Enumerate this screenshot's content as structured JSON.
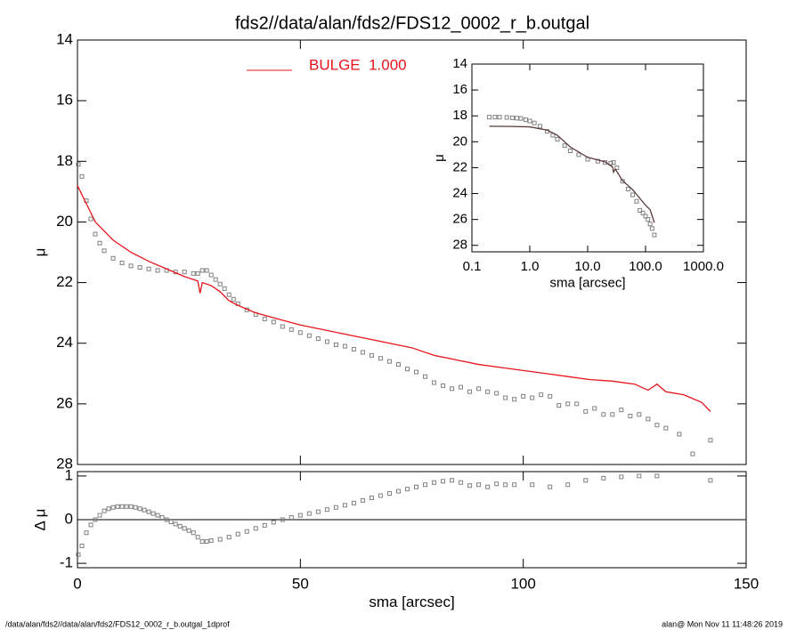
{
  "title": "fds2//data/alan/fds2/FDS12_0002_r_b.outgal",
  "footer": {
    "left": "/data/alan/fds2//data/alan/fds2/FDS12_0002_r_b.outgal_1dprof",
    "right": "alan@  Mon Nov 11 11:48:26 2019"
  },
  "chart_data": [
    {
      "type": "line",
      "ylabel": "μ",
      "xlim": [
        0,
        150
      ],
      "ylim": [
        14,
        28
      ],
      "yreverse": true,
      "yticks": [
        14,
        16,
        18,
        20,
        22,
        24,
        26,
        28
      ],
      "series": [
        {
          "marker": "square",
          "color": "#808080",
          "x": [
            0.2,
            1,
            2,
            3,
            4,
            5,
            6,
            8,
            10,
            12,
            14,
            16,
            18,
            20,
            22,
            24,
            26,
            27,
            28,
            29,
            30,
            31,
            32,
            33,
            34,
            35,
            36,
            38,
            40,
            42,
            44,
            46,
            48,
            50,
            52,
            54,
            56,
            58,
            60,
            62,
            64,
            66,
            68,
            70,
            72,
            74,
            76,
            78,
            80,
            82,
            84,
            86,
            88,
            90,
            92,
            94,
            96,
            98,
            100,
            102,
            104,
            106,
            108,
            110,
            112,
            114,
            116,
            118,
            120,
            122,
            124,
            126,
            128,
            130,
            132,
            135,
            138,
            142
          ],
          "values": [
            18.1,
            18.5,
            19.3,
            19.9,
            20.4,
            20.7,
            20.95,
            21.2,
            21.35,
            21.45,
            21.5,
            21.55,
            21.6,
            21.6,
            21.65,
            21.65,
            21.7,
            21.7,
            21.6,
            21.6,
            21.75,
            21.9,
            22.05,
            22.2,
            22.4,
            22.55,
            22.7,
            22.9,
            23.05,
            23.2,
            23.3,
            23.45,
            23.55,
            23.65,
            23.75,
            23.85,
            23.95,
            24.05,
            24.1,
            24.2,
            24.3,
            24.4,
            24.5,
            24.6,
            24.7,
            24.85,
            24.95,
            25.1,
            25.3,
            25.4,
            25.5,
            25.45,
            25.6,
            25.5,
            25.6,
            25.65,
            25.8,
            25.85,
            25.75,
            25.8,
            25.7,
            25.75,
            26.05,
            26.0,
            26.0,
            26.25,
            26.15,
            26.35,
            26.35,
            26.2,
            26.4,
            26.35,
            26.5,
            26.7,
            26.8,
            27.0,
            27.65,
            27.2
          ]
        },
        {
          "name": "BULGE  1.000",
          "marker": "line",
          "color": "#e8141b",
          "x": [
            0,
            2,
            4,
            8,
            12,
            16,
            20,
            24,
            26,
            27,
            27.5,
            28,
            30,
            32,
            34,
            36,
            40,
            45,
            50,
            55,
            60,
            65,
            70,
            75,
            80,
            85,
            90,
            95,
            100,
            105,
            110,
            115,
            120,
            125,
            128,
            130,
            132,
            136,
            140,
            142
          ],
          "values": [
            18.8,
            19.4,
            20.0,
            20.6,
            21.0,
            21.3,
            21.55,
            21.8,
            21.9,
            21.95,
            22.35,
            22.0,
            22.1,
            22.3,
            22.6,
            22.75,
            23.0,
            23.2,
            23.4,
            23.55,
            23.7,
            23.85,
            24.0,
            24.15,
            24.4,
            24.55,
            24.7,
            24.8,
            24.9,
            25.0,
            25.1,
            25.2,
            25.25,
            25.35,
            25.55,
            25.35,
            25.6,
            25.7,
            25.95,
            26.25
          ]
        }
      ]
    },
    {
      "type": "line",
      "ylabel": "Δ μ",
      "xlabel": "sma [arcsec]",
      "xlim": [
        0,
        150
      ],
      "ylim": [
        -1.1,
        1.1
      ],
      "xticks": [
        0,
        50,
        100,
        150
      ],
      "yticks": [
        1,
        0,
        -1
      ],
      "series": [
        {
          "marker": "square",
          "color": "#808080",
          "x": [
            0.2,
            1,
            2,
            3,
            4,
            5,
            6,
            7,
            8,
            9,
            10,
            11,
            12,
            13,
            14,
            15,
            16,
            17,
            18,
            19,
            20,
            21,
            22,
            23,
            24,
            25,
            26,
            27,
            28,
            29,
            30,
            32,
            34,
            36,
            38,
            40,
            42,
            44,
            46,
            48,
            50,
            52,
            54,
            56,
            58,
            60,
            62,
            64,
            66,
            68,
            70,
            72,
            74,
            76,
            78,
            80,
            82,
            84,
            86,
            88,
            90,
            92,
            94,
            96,
            98,
            102,
            106,
            110,
            114,
            118,
            122,
            126,
            130,
            142
          ],
          "values": [
            -0.8,
            -0.6,
            -0.3,
            -0.12,
            0.0,
            0.1,
            0.2,
            0.25,
            0.28,
            0.3,
            0.3,
            0.3,
            0.3,
            0.28,
            0.25,
            0.22,
            0.18,
            0.14,
            0.1,
            0.05,
            0.0,
            -0.05,
            -0.1,
            -0.15,
            -0.2,
            -0.25,
            -0.3,
            -0.4,
            -0.5,
            -0.5,
            -0.48,
            -0.45,
            -0.4,
            -0.33,
            -0.27,
            -0.2,
            -0.13,
            -0.06,
            0.0,
            0.05,
            0.1,
            0.14,
            0.18,
            0.23,
            0.28,
            0.33,
            0.38,
            0.44,
            0.5,
            0.55,
            0.6,
            0.65,
            0.7,
            0.75,
            0.8,
            0.85,
            0.88,
            0.9,
            0.85,
            0.78,
            0.8,
            0.75,
            0.82,
            0.8,
            0.8,
            0.8,
            0.75,
            0.8,
            0.9,
            0.95,
            0.98,
            1.0,
            1.0,
            0.9
          ]
        }
      ]
    },
    {
      "type": "line",
      "ylabel": "μ",
      "xlabel": "sma [arcsec]",
      "xlog": true,
      "xlim": [
        0.1,
        1000
      ],
      "ylim": [
        14,
        28.5
      ],
      "yreverse": true,
      "xticks": [
        {
          "value": 0.1,
          "label": "0.1"
        },
        {
          "value": 1,
          "label": "1.0"
        },
        {
          "value": 10,
          "label": "10.0"
        },
        {
          "value": 100,
          "label": "100.0"
        },
        {
          "value": 1000,
          "label": "1000.0"
        }
      ],
      "yticks": [
        14,
        16,
        18,
        20,
        22,
        24,
        26,
        28
      ],
      "series": [
        {
          "marker": "square",
          "color": "#808080",
          "x": [
            0.2,
            0.25,
            0.3,
            0.4,
            0.5,
            0.6,
            0.7,
            0.85,
            1,
            1.2,
            1.5,
            2,
            2.5,
            3,
            4,
            5,
            7,
            10,
            15,
            20,
            25,
            28,
            32,
            40,
            50,
            60,
            70,
            80,
            90,
            100,
            110,
            120,
            130,
            142
          ],
          "values": [
            18.1,
            18.1,
            18.1,
            18.12,
            18.15,
            18.18,
            18.2,
            18.3,
            18.4,
            18.55,
            18.8,
            19.2,
            19.5,
            19.8,
            20.3,
            20.7,
            21.0,
            21.35,
            21.5,
            21.6,
            21.65,
            21.6,
            22.0,
            23.05,
            23.65,
            24.1,
            24.6,
            25.3,
            25.5,
            25.75,
            26.0,
            26.35,
            26.7,
            27.2
          ]
        },
        {
          "marker": "line",
          "color": "#5a3a3a",
          "x": [
            0.2,
            0.5,
            1,
            2,
            3,
            5,
            10,
            20,
            27,
            28,
            30,
            40,
            60,
            100,
            120,
            142
          ],
          "values": [
            18.8,
            18.82,
            18.85,
            19.1,
            19.5,
            20.4,
            21.2,
            21.55,
            21.95,
            22.35,
            22.1,
            23.0,
            23.7,
            24.9,
            25.25,
            26.25
          ]
        }
      ]
    }
  ]
}
